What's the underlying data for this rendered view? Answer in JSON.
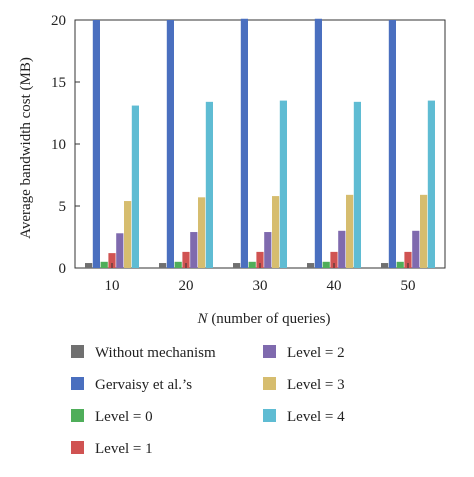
{
  "chart_data": {
    "type": "bar",
    "categories": [
      "10",
      "20",
      "30",
      "40",
      "50"
    ],
    "xlabel_italic": "N",
    "xlabel_rest": " (number of queries)",
    "ylabel": "Average bandwidth cost (MB)",
    "ylim": [
      0,
      20
    ],
    "yticks": [
      "0",
      "5",
      "10",
      "15",
      "20"
    ],
    "grid": false,
    "legend_position": "bottom",
    "series": [
      {
        "name": "Without mechanism",
        "color": "#707070",
        "values": [
          0.4,
          0.4,
          0.4,
          0.4,
          0.4
        ]
      },
      {
        "name": "Gervaisy et al.’s",
        "color": "#4a6fbf",
        "values": [
          20.0,
          20.0,
          20.1,
          20.1,
          20.0
        ]
      },
      {
        "name": "Level = 0",
        "color": "#4fae5a",
        "values": [
          0.5,
          0.5,
          0.5,
          0.5,
          0.5
        ]
      },
      {
        "name": "Level = 1",
        "color": "#d05352",
        "values": [
          1.2,
          1.3,
          1.3,
          1.3,
          1.3
        ]
      },
      {
        "name": "Level = 2",
        "color": "#7f6aae",
        "values": [
          2.8,
          2.9,
          2.9,
          3.0,
          3.0
        ]
      },
      {
        "name": "Level = 3",
        "color": "#d6bd6f",
        "values": [
          5.4,
          5.7,
          5.8,
          5.9,
          5.9
        ]
      },
      {
        "name": "Level = 4",
        "color": "#5fbcd3",
        "values": [
          13.1,
          13.4,
          13.5,
          13.4,
          13.5
        ]
      }
    ]
  }
}
